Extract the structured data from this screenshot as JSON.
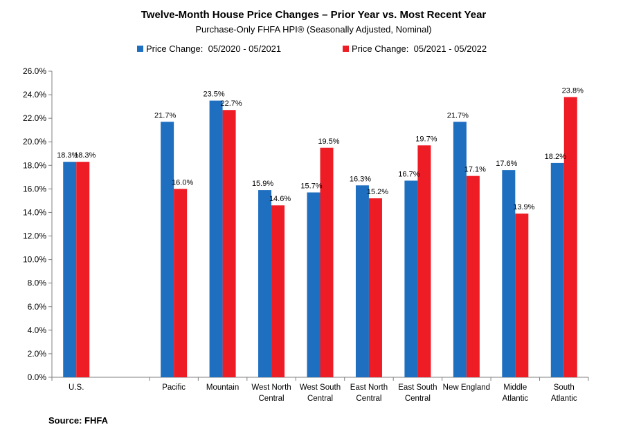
{
  "chart_data": {
    "type": "bar",
    "title": "Twelve-Month House Price Changes – Prior Year vs. Most Recent Year",
    "subtitle": "Purchase-Only FHFA HPI® (Seasonally Adjusted, Nominal)",
    "categories": [
      [
        "U.S."
      ],
      [
        "Pacific"
      ],
      [
        "Mountain"
      ],
      [
        "West North",
        "Central"
      ],
      [
        "West South",
        "Central"
      ],
      [
        "East North",
        "Central"
      ],
      [
        "East South",
        "Central"
      ],
      [
        "New England"
      ],
      [
        "Middle",
        "Atlantic"
      ],
      [
        "South",
        "Atlantic"
      ]
    ],
    "series": [
      {
        "name": "Price Change:  05/2020 - 05/2021",
        "color": "#1f6fc1",
        "values": [
          18.3,
          21.7,
          23.5,
          15.9,
          15.7,
          16.3,
          16.7,
          21.7,
          17.6,
          18.2
        ],
        "labels": [
          "18.3%",
          "21.7%",
          "23.5%",
          "15.9%",
          "15.7%",
          "16.3%",
          "16.7%",
          "21.7%",
          "17.6%",
          "18.2%"
        ]
      },
      {
        "name": "Price Change:  05/2021 - 05/2022",
        "color": "#ee1c25",
        "values": [
          18.3,
          16.0,
          22.7,
          14.6,
          19.5,
          15.2,
          19.7,
          17.1,
          13.9,
          23.8
        ],
        "labels": [
          "18.3%",
          "16.0%",
          "22.7%",
          "14.6%",
          "19.5%",
          "15.2%",
          "19.7%",
          "17.1%",
          "13.9%",
          "23.8%"
        ]
      }
    ],
    "y_ticks": [
      "0.0%",
      "2.0%",
      "4.0%",
      "6.0%",
      "8.0%",
      "10.0%",
      "12.0%",
      "14.0%",
      "16.0%",
      "18.0%",
      "20.0%",
      "22.0%",
      "24.0%",
      "26.0%"
    ],
    "ylim": [
      0,
      26
    ],
    "grid": false,
    "legend_position": "top"
  },
  "source": "Source: FHFA"
}
